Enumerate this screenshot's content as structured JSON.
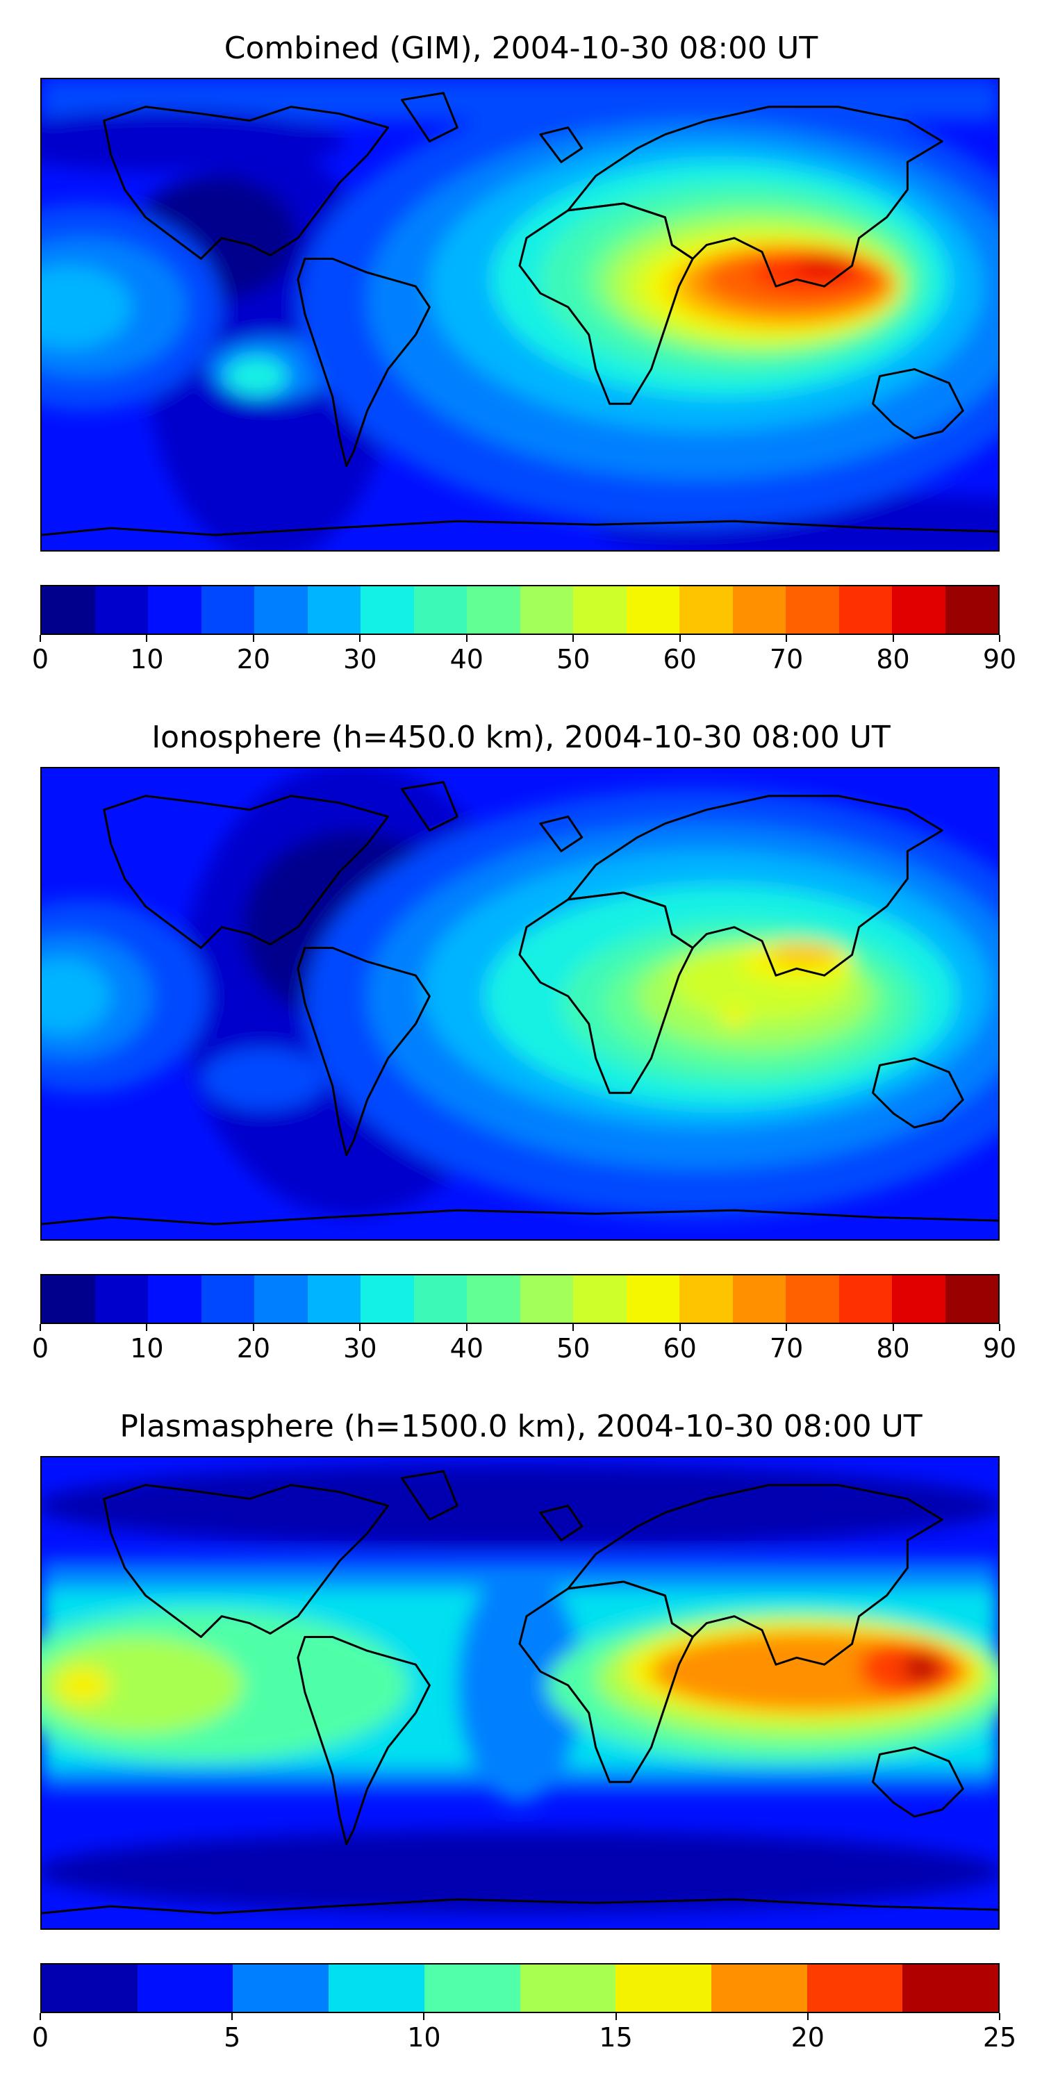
{
  "panels": [
    {
      "title": "Combined (GIM), 2004-10-30 08:00 UT",
      "colorbar": {
        "ticks": [
          "0",
          "10",
          "20",
          "30",
          "40",
          "50",
          "60",
          "70",
          "80",
          "90"
        ],
        "colors": [
          "#00008d",
          "#0000cc",
          "#0010ff",
          "#0048ff",
          "#0080ff",
          "#00b4ff",
          "#12f1e4",
          "#3cf9b8",
          "#62ff94",
          "#a3ff5a",
          "#ceff2a",
          "#f5f700",
          "#ffc400",
          "#ff9100",
          "#ff6000",
          "#ff3000",
          "#e00000",
          "#990000"
        ]
      }
    },
    {
      "title": "Ionosphere  (h=450.0 km), 2004-10-30 08:00 UT",
      "colorbar": {
        "ticks": [
          "0",
          "10",
          "20",
          "30",
          "40",
          "50",
          "60",
          "70",
          "80",
          "90"
        ],
        "colors": [
          "#00008d",
          "#0000cc",
          "#0010ff",
          "#0048ff",
          "#0080ff",
          "#00b4ff",
          "#12f1e4",
          "#3cf9b8",
          "#62ff94",
          "#a3ff5a",
          "#ceff2a",
          "#f5f700",
          "#ffc400",
          "#ff9100",
          "#ff6000",
          "#ff3000",
          "#e00000",
          "#990000"
        ]
      }
    },
    {
      "title": "Plasmasphere (h=1500.0 km), 2004-10-30 08:00 UT",
      "colorbar": {
        "ticks": [
          "0",
          "5",
          "10",
          "15",
          "20",
          "25"
        ],
        "colors": [
          "#0000b0",
          "#0010ff",
          "#0080ff",
          "#00e0f0",
          "#50ffa8",
          "#a8ff50",
          "#f5f200",
          "#ff9000",
          "#ff3c00",
          "#b00000"
        ]
      }
    }
  ]
}
